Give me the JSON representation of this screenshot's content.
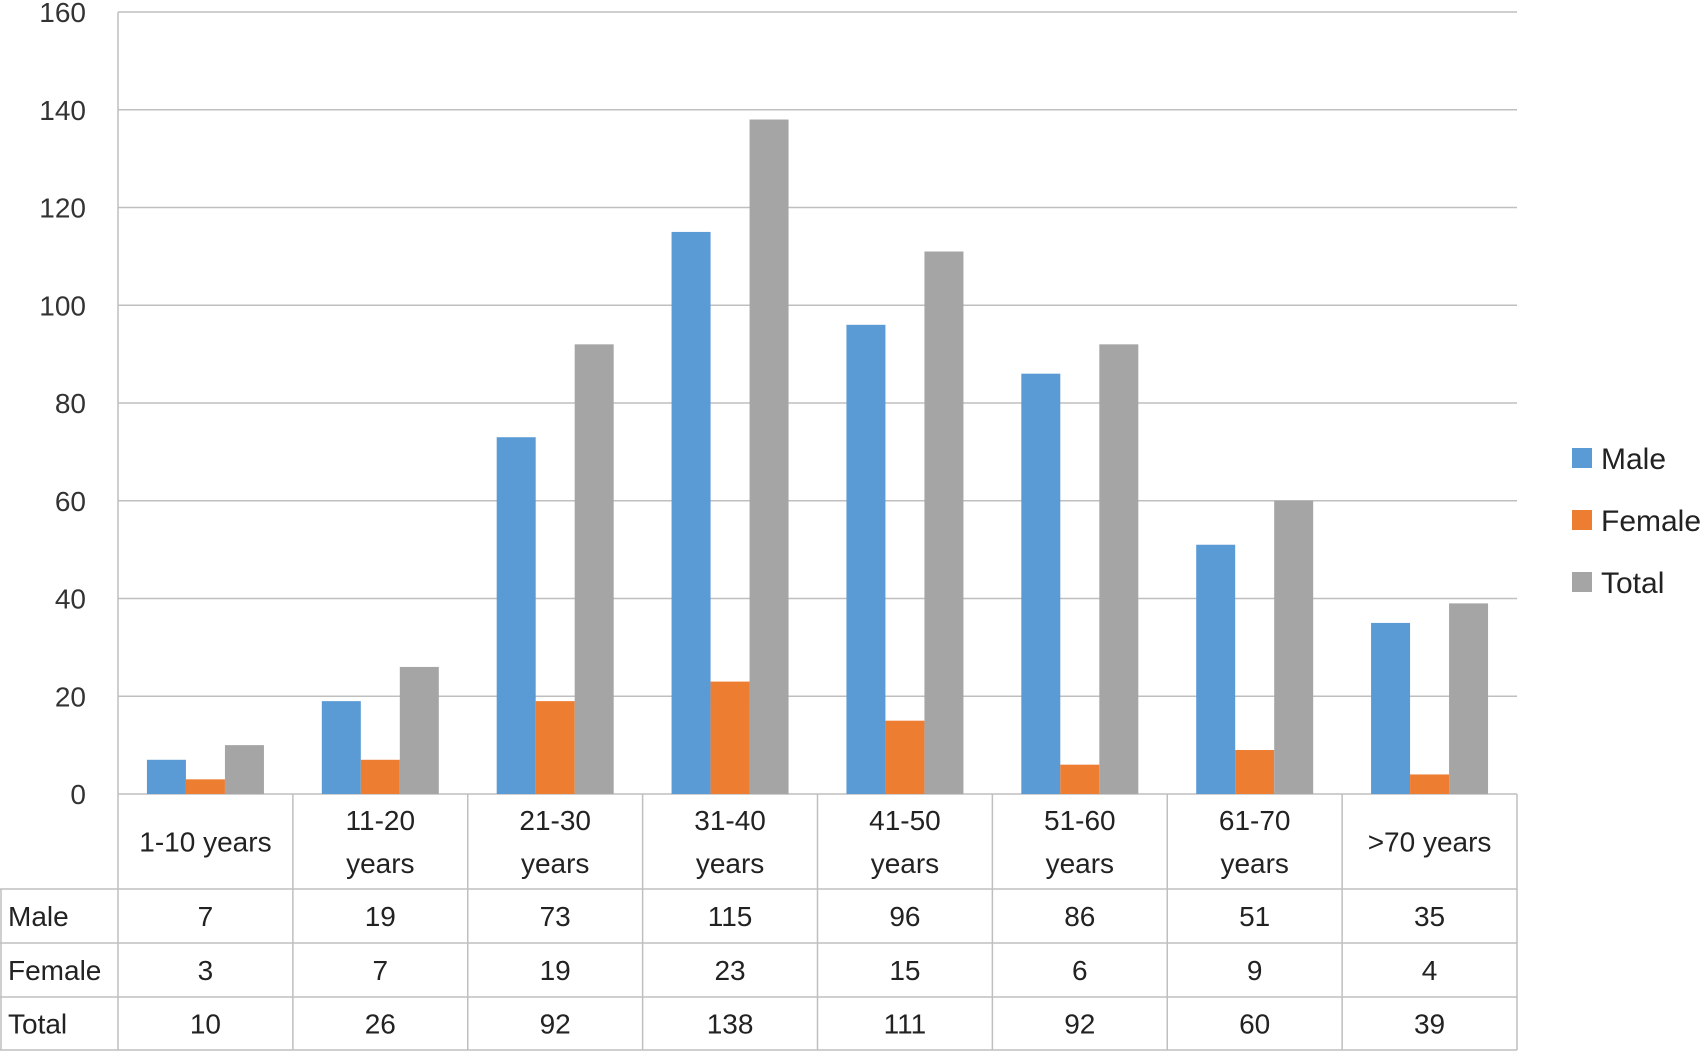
{
  "chart_data": {
    "type": "bar",
    "title": "",
    "xlabel": "",
    "ylabel": "",
    "ylim": [
      0,
      160
    ],
    "yticks": [
      0,
      20,
      40,
      60,
      80,
      100,
      120,
      140,
      160
    ],
    "grid": true,
    "legend": "right",
    "categories": [
      [
        "1-10 years"
      ],
      [
        "11-20",
        "years"
      ],
      [
        "21-30",
        "years"
      ],
      [
        "31-40",
        "years"
      ],
      [
        "41-50",
        "years"
      ],
      [
        "51-60",
        "years"
      ],
      [
        "61-70",
        "years"
      ],
      [
        ">70 years"
      ]
    ],
    "series": [
      {
        "name": "Male",
        "color": "#5b9bd5",
        "values": [
          7,
          19,
          73,
          115,
          96,
          86,
          51,
          35
        ]
      },
      {
        "name": "Female",
        "color": "#ed7d31",
        "values": [
          3,
          7,
          19,
          23,
          15,
          6,
          9,
          4
        ]
      },
      {
        "name": "Total",
        "color": "#a5a5a5",
        "values": [
          10,
          26,
          92,
          138,
          111,
          92,
          60,
          39
        ]
      }
    ]
  }
}
